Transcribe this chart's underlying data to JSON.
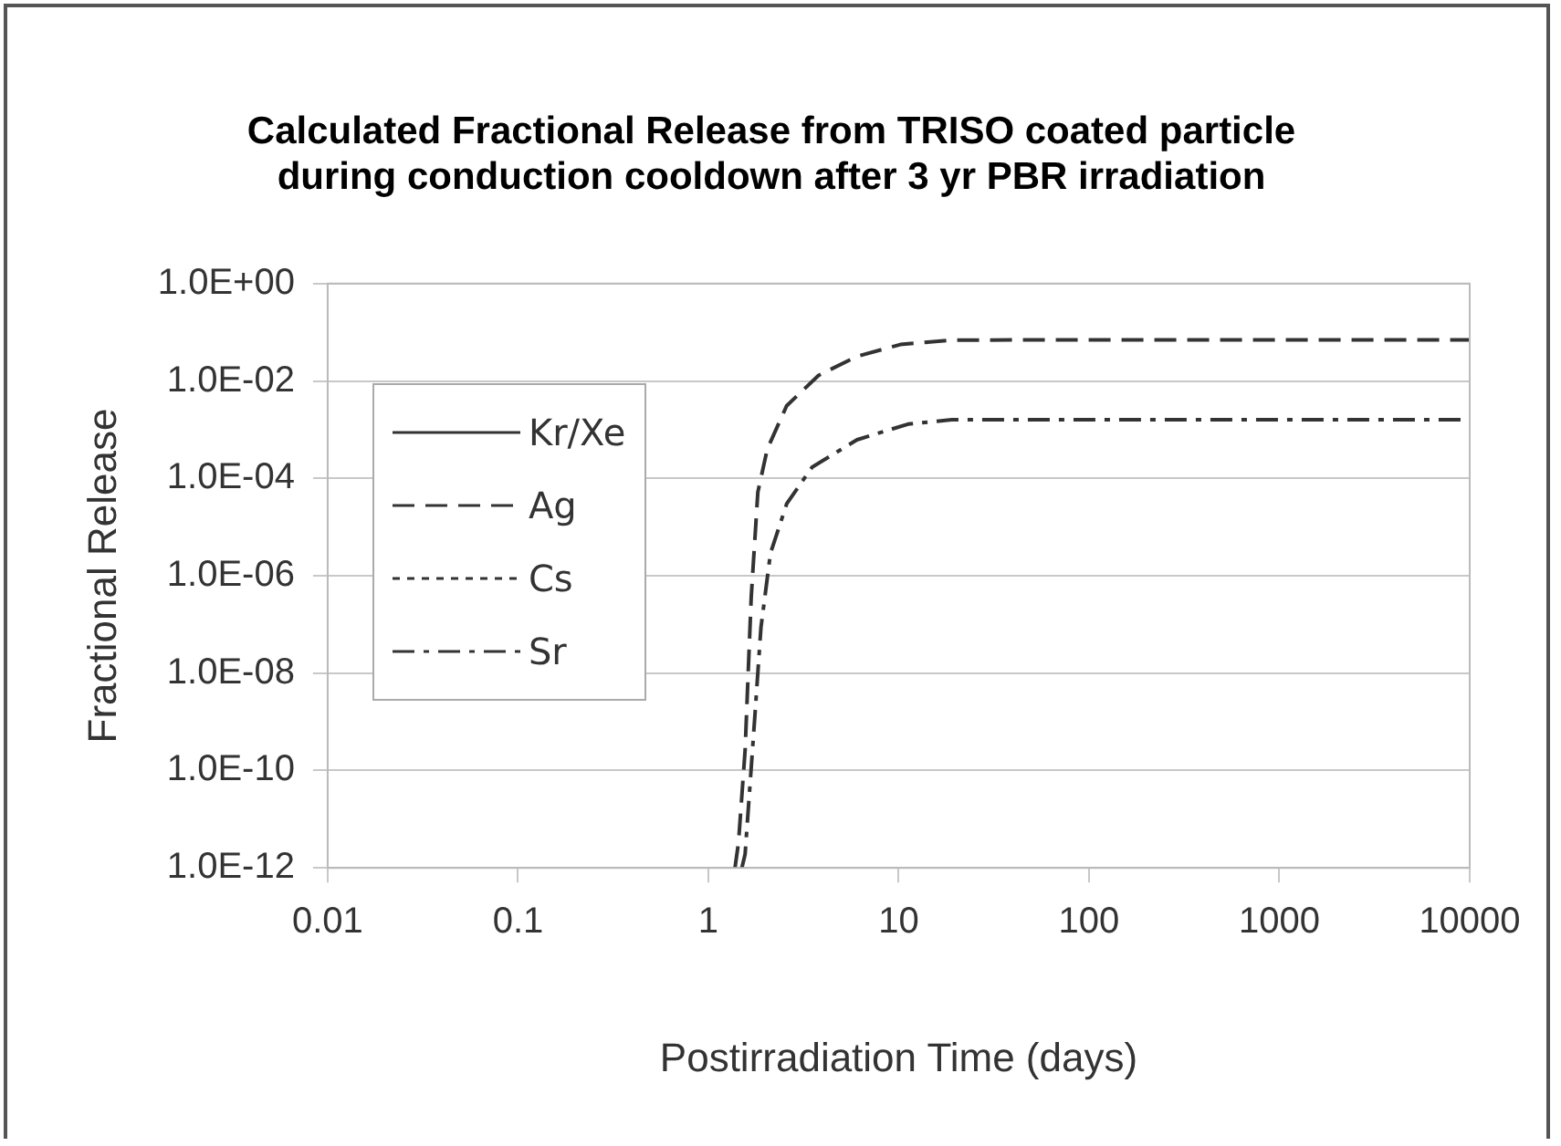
{
  "chart_data": {
    "type": "line",
    "title": "Calculated Fractional Release from TRISO coated particle\nduring conduction cooldown after 3 yr PBR irradiation",
    "xlabel": "Postirradiation Time (days)",
    "ylabel": "Fractional Release",
    "log": "xy",
    "xlim": [
      0.01,
      10000
    ],
    "xticks": [
      0.01,
      0.1,
      1,
      10,
      100,
      1000,
      10000
    ],
    "ylim": [
      1e-12,
      1
    ],
    "yticks": [
      {
        "value": 1e-12,
        "label": "1.0E-12"
      },
      {
        "value": 1e-10,
        "label": "1.0E-10"
      },
      {
        "value": 1e-08,
        "label": "1.0E-08"
      },
      {
        "value": 1e-06,
        "label": "1.0E-06"
      },
      {
        "value": 0.0001,
        "label": "1.0E-04"
      },
      {
        "value": 0.01,
        "label": "1.0E-02"
      },
      {
        "value": 1,
        "label": "1.0E+00"
      }
    ],
    "grid": "y",
    "legend": "left",
    "marker": "none",
    "series": [
      {
        "name": "Kr/Xe",
        "color": "#333333",
        "line_style": "solid"
      },
      {
        "name": "Ag",
        "color": "#333333",
        "line_style": "dashed",
        "x": [
          1.38,
          1.44,
          1.56,
          1.68,
          1.82,
          2.04,
          2.58,
          3.79,
          6.04,
          10.2,
          19,
          100,
          1000,
          10000
        ],
        "values": [
          1e-12,
          3.3e-12,
          2.6e-10,
          3.7e-07,
          5.2e-05,
          0.0004,
          0.0031,
          0.013,
          0.032,
          0.056,
          0.069,
          0.07,
          0.07,
          0.07
        ]
      },
      {
        "name": "Cs",
        "color": "#333333",
        "line_style": "dotted"
      },
      {
        "name": "Sr",
        "color": "#333333",
        "line_style": "dashdot",
        "x": [
          1.5,
          1.56,
          1.75,
          1.89,
          2.12,
          2.58,
          3.51,
          6.04,
          11.2,
          19,
          100,
          1000,
          10000
        ],
        "values": [
          1e-12,
          1.9e-12,
          1.1e-09,
          8.7e-08,
          2.9e-06,
          3e-05,
          0.00017,
          0.00062,
          0.0013,
          0.0016,
          0.0016,
          0.0016,
          0.0016
        ]
      }
    ]
  }
}
